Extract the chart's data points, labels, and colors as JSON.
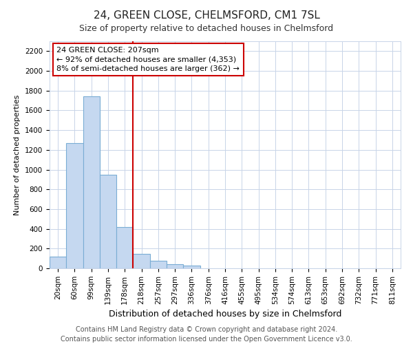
{
  "title": "24, GREEN CLOSE, CHELMSFORD, CM1 7SL",
  "subtitle": "Size of property relative to detached houses in Chelmsford",
  "xlabel": "Distribution of detached houses by size in Chelmsford",
  "ylabel": "Number of detached properties",
  "footer_line1": "Contains HM Land Registry data © Crown copyright and database right 2024.",
  "footer_line2": "Contains public sector information licensed under the Open Government Licence v3.0.",
  "categories": [
    "20sqm",
    "60sqm",
    "99sqm",
    "139sqm",
    "178sqm",
    "218sqm",
    "257sqm",
    "297sqm",
    "336sqm",
    "376sqm",
    "416sqm",
    "455sqm",
    "495sqm",
    "534sqm",
    "574sqm",
    "613sqm",
    "653sqm",
    "692sqm",
    "732sqm",
    "771sqm",
    "811sqm"
  ],
  "values": [
    120,
    1270,
    1740,
    950,
    420,
    145,
    75,
    40,
    25,
    0,
    0,
    0,
    0,
    0,
    0,
    0,
    0,
    0,
    0,
    0,
    0
  ],
  "bar_color": "#c5d8f0",
  "bar_edge_color": "#7aadd4",
  "grid_color": "#c8d4e8",
  "annotation_text_line1": "24 GREEN CLOSE: 207sqm",
  "annotation_text_line2": "← 92% of detached houses are smaller (4,353)",
  "annotation_text_line3": "8% of semi-detached houses are larger (362) →",
  "vline_color": "#cc0000",
  "box_edge_color": "#cc0000",
  "vline_x_index": 4.5,
  "ylim": [
    0,
    2300
  ],
  "yticks": [
    0,
    200,
    400,
    600,
    800,
    1000,
    1200,
    1400,
    1600,
    1800,
    2000,
    2200
  ],
  "background_color": "#ffffff",
  "title_fontsize": 11,
  "subtitle_fontsize": 9,
  "ylabel_fontsize": 8,
  "xlabel_fontsize": 9,
  "tick_fontsize": 7.5,
  "annotation_fontsize": 8,
  "footer_fontsize": 7
}
